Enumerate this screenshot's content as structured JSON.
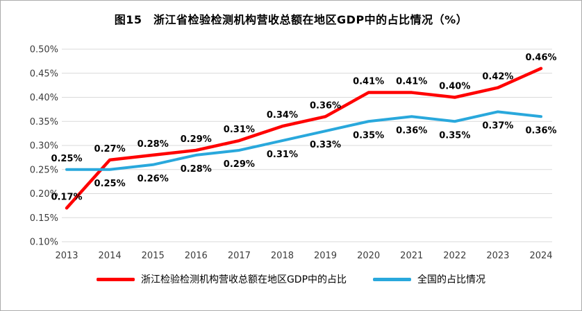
{
  "figure": {
    "background": "#ffffff",
    "border_color": "#ababab",
    "grid_color": "#d9d9d9"
  },
  "chart_data": {
    "type": "line",
    "title": "图15　浙江省检验检测机构营收总额在地区GDP中的占比情况（%）",
    "categories": [
      "2013",
      "2014",
      "2015",
      "2016",
      "2017",
      "2018",
      "2019",
      "2020",
      "2021",
      "2022",
      "2023",
      "2024"
    ],
    "y_ticks": [
      "0.50%",
      "0.45%",
      "0.40%",
      "0.35%",
      "0.30%",
      "0.25%",
      "0.20%",
      "0.15%",
      "0.10%"
    ],
    "ylim": [
      0.1,
      0.5
    ],
    "grid": true,
    "legend_position": "bottom",
    "series": [
      {
        "name": "浙江检验检测机构营收总额在地区GDP中的占比",
        "color": "#ff0000",
        "values": [
          0.17,
          0.27,
          0.28,
          0.29,
          0.31,
          0.34,
          0.36,
          0.41,
          0.41,
          0.4,
          0.42,
          0.46
        ],
        "labels": [
          "0.17%",
          "0.27%",
          "0.28%",
          "0.29%",
          "0.31%",
          "0.34%",
          "0.36%",
          "0.41%",
          "0.41%",
          "0.40%",
          "0.42%",
          "0.46%"
        ],
        "label_position": "above"
      },
      {
        "name": "全国的占比情况",
        "color": "#29a8dc",
        "values": [
          0.25,
          0.25,
          0.26,
          0.28,
          0.29,
          0.31,
          0.33,
          0.35,
          0.36,
          0.35,
          0.37,
          0.36
        ],
        "labels": [
          "0.25%",
          "0.25%",
          "0.26%",
          "0.28%",
          "0.29%",
          "0.31%",
          "0.33%",
          "0.35%",
          "0.36%",
          "0.35%",
          "0.37%",
          "0.36%"
        ],
        "label_position": "below",
        "label_positions": [
          "above",
          "below",
          "below",
          "below",
          "below",
          "below",
          "below",
          "below",
          "below",
          "below",
          "below",
          "below"
        ]
      }
    ]
  }
}
